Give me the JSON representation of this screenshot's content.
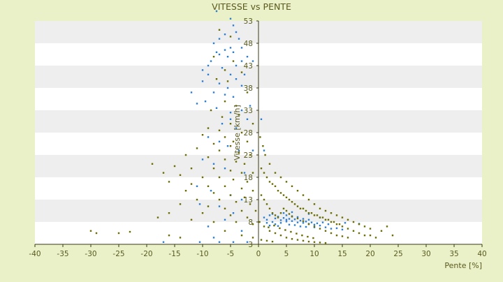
{
  "chart_data": {
    "type": "scatter",
    "title": "VITESSE vs PENTE",
    "xlabel": "Pente [%]",
    "ylabel": "Vitesse [km/h]",
    "xlim": [
      -40,
      40
    ],
    "ylim": [
      3,
      58
    ],
    "x_ticks": [
      -40,
      -35,
      -30,
      -25,
      -20,
      -15,
      -10,
      -5,
      0,
      5,
      10,
      15,
      20,
      25,
      30,
      35,
      40
    ],
    "y_ticks": [
      3,
      8,
      13,
      18,
      23,
      28,
      33,
      38,
      43,
      48,
      53
    ],
    "grid": "horizontal alternating bands",
    "colors": {
      "background": "#eaf0c8",
      "band_light": "#ffffff",
      "band_dark": "#eeeeee",
      "axis_text": "#5a5a1e",
      "series_blue": "#2a7fd4",
      "series_olive": "#6b6b00"
    },
    "series": [
      {
        "color": "#2a7fd4",
        "points": [
          [
            -7.5,
            56.5
          ],
          [
            -5,
            53.5
          ],
          [
            -4.5,
            52
          ],
          [
            -4,
            50.5
          ],
          [
            -6,
            50
          ],
          [
            -7,
            49
          ],
          [
            -8,
            48
          ],
          [
            -3.5,
            49
          ],
          [
            -5,
            47
          ],
          [
            -6,
            46.5
          ],
          [
            -4.5,
            46
          ],
          [
            -5.5,
            45
          ],
          [
            -7,
            45.5
          ],
          [
            -8.5,
            44
          ],
          [
            -3,
            44
          ],
          [
            -4,
            43
          ],
          [
            -6.5,
            42.5
          ],
          [
            -9,
            41
          ],
          [
            -5,
            41
          ],
          [
            -2.5,
            41
          ],
          [
            -4,
            40
          ],
          [
            -10,
            39.5
          ],
          [
            -7,
            39
          ],
          [
            -5.5,
            38
          ],
          [
            -3,
            38.5
          ],
          [
            -8,
            37
          ],
          [
            -6,
            36.5
          ],
          [
            -4.5,
            36
          ],
          [
            -11,
            34.5
          ],
          [
            -9.5,
            35
          ],
          [
            -7.5,
            33.5
          ],
          [
            -5,
            32.5
          ],
          [
            -3,
            33
          ],
          [
            -1.5,
            34
          ],
          [
            0.5,
            31
          ],
          [
            -6.5,
            30
          ],
          [
            -4,
            29
          ],
          [
            -2,
            31
          ],
          [
            -9,
            27
          ],
          [
            -7,
            26
          ],
          [
            -5.5,
            25
          ],
          [
            -3.5,
            24
          ],
          [
            -1,
            24
          ],
          [
            1,
            24
          ],
          [
            -10,
            22
          ],
          [
            -8,
            21
          ],
          [
            -6,
            20
          ],
          [
            -2.5,
            19
          ],
          [
            -11,
            16
          ],
          [
            -8.5,
            15
          ],
          [
            -5,
            14
          ],
          [
            -3,
            13
          ],
          [
            -7,
            11.5
          ],
          [
            -10.5,
            12
          ],
          [
            -4.5,
            10
          ],
          [
            -6,
            8.5
          ],
          [
            -9,
            7
          ],
          [
            -3,
            6
          ],
          [
            -8,
            4.5
          ],
          [
            -10.5,
            3.5
          ],
          [
            -7,
            3.5
          ],
          [
            -4.5,
            3.5
          ],
          [
            -2,
            3.5
          ],
          [
            -17,
            3.5
          ],
          [
            -5,
            31
          ],
          [
            -12,
            37
          ],
          [
            -9,
            43
          ],
          [
            -2,
            45
          ],
          [
            -3,
            47
          ],
          [
            -7.5,
            46
          ],
          [
            -10,
            42
          ],
          [
            -1,
            44
          ],
          [
            1,
            9
          ],
          [
            1.5,
            8.5
          ],
          [
            2,
            9.5
          ],
          [
            2.5,
            8
          ],
          [
            3,
            8.8
          ],
          [
            3.5,
            9.2
          ],
          [
            4,
            8.4
          ],
          [
            4.5,
            8.9
          ],
          [
            5,
            8.1
          ],
          [
            5.5,
            8.7
          ],
          [
            6,
            8.2
          ],
          [
            6.5,
            8.6
          ],
          [
            7,
            7.9
          ],
          [
            7.5,
            8.3
          ],
          [
            8,
            7.8
          ],
          [
            8.5,
            8.1
          ],
          [
            9,
            7.6
          ],
          [
            9.5,
            7.9
          ],
          [
            10,
            7.4
          ],
          [
            10.5,
            7.7
          ],
          [
            11,
            7.2
          ],
          [
            12,
            6.8
          ],
          [
            13,
            6.5
          ],
          [
            14,
            6.6
          ],
          [
            15,
            6.3
          ],
          [
            3,
            7.5
          ],
          [
            4,
            7.8
          ],
          [
            5,
            9.5
          ],
          [
            6,
            9.3
          ],
          [
            7,
            9.1
          ],
          [
            8,
            8.7
          ],
          [
            9,
            8.5
          ],
          [
            2,
            7.2
          ],
          [
            3.5,
            7.1
          ],
          [
            6.5,
            7.3
          ],
          [
            7.5,
            7
          ],
          [
            8.5,
            6.9
          ],
          [
            10,
            6.8
          ],
          [
            11.5,
            7.9
          ],
          [
            12.5,
            7.5
          ],
          [
            1.5,
            7.8
          ],
          [
            2.5,
            9.8
          ],
          [
            4.5,
            10
          ],
          [
            5.5,
            7.4
          ],
          [
            6,
            10.2
          ],
          [
            15.5,
            7.8
          ],
          [
            18,
            7.6
          ],
          [
            11,
            9
          ],
          [
            9,
            9.8
          ],
          [
            5,
            8.5
          ]
        ]
      },
      {
        "color": "#6b6b00",
        "points": [
          [
            -7,
            51
          ],
          [
            -5,
            49.5
          ],
          [
            -8,
            45
          ],
          [
            -4.5,
            44
          ],
          [
            -6,
            42
          ],
          [
            -3,
            41.5
          ],
          [
            -7.5,
            40
          ],
          [
            -5.5,
            39.5
          ],
          [
            -2,
            37
          ],
          [
            -6,
            35
          ],
          [
            -4,
            34
          ],
          [
            -8.5,
            33
          ],
          [
            -3.5,
            32
          ],
          [
            -6.5,
            31.5
          ],
          [
            -1,
            30
          ],
          [
            -5,
            30
          ],
          [
            -9,
            29
          ],
          [
            -7,
            28.5
          ],
          [
            -3,
            28
          ],
          [
            -10,
            27.5
          ],
          [
            -6,
            27
          ],
          [
            -4.5,
            26
          ],
          [
            -2,
            26
          ],
          [
            -8,
            25.5
          ],
          [
            -5,
            25
          ],
          [
            -11,
            24.5
          ],
          [
            -7,
            24
          ],
          [
            -3.5,
            23.5
          ],
          [
            -1.5,
            23
          ],
          [
            -13,
            23
          ],
          [
            -9,
            22.5
          ],
          [
            -6,
            22
          ],
          [
            -4,
            21.5
          ],
          [
            -2.5,
            21
          ],
          [
            -19,
            21
          ],
          [
            -15,
            20.5
          ],
          [
            -12,
            20
          ],
          [
            -8,
            20
          ],
          [
            -5,
            19.5
          ],
          [
            -3,
            19
          ],
          [
            -1,
            19
          ],
          [
            -17,
            19
          ],
          [
            -14,
            18.5
          ],
          [
            -10,
            18
          ],
          [
            -7,
            18
          ],
          [
            -4.5,
            17.5
          ],
          [
            -2,
            17
          ],
          [
            -16,
            17
          ],
          [
            -12,
            16.5
          ],
          [
            -9,
            16
          ],
          [
            -6,
            16
          ],
          [
            -3,
            15.5
          ],
          [
            -1,
            15
          ],
          [
            -13,
            15
          ],
          [
            -8,
            14.5
          ],
          [
            -5,
            14
          ],
          [
            -2.5,
            13.5
          ],
          [
            -11,
            13
          ],
          [
            -7,
            13
          ],
          [
            -4,
            12.5
          ],
          [
            -1.5,
            12
          ],
          [
            -14,
            12
          ],
          [
            -9,
            11.5
          ],
          [
            -6,
            11
          ],
          [
            -3,
            10.5
          ],
          [
            -0.5,
            10.5
          ],
          [
            -16,
            10
          ],
          [
            -10,
            10
          ],
          [
            -5,
            9.5
          ],
          [
            -2,
            9
          ],
          [
            -18,
            9
          ],
          [
            -12,
            8.5
          ],
          [
            -8,
            8
          ],
          [
            -4,
            8
          ],
          [
            -1,
            7.5
          ],
          [
            -30,
            6
          ],
          [
            -29,
            5.5
          ],
          [
            -25,
            5.5
          ],
          [
            -23,
            5.8
          ],
          [
            -16,
            5
          ],
          [
            -14,
            4.5
          ],
          [
            -6,
            6
          ],
          [
            -3,
            5
          ],
          [
            -1,
            4.5
          ],
          [
            0.5,
            20
          ],
          [
            1,
            19
          ],
          [
            1.5,
            18
          ],
          [
            2,
            17
          ],
          [
            2.5,
            16.5
          ],
          [
            3,
            16
          ],
          [
            3.5,
            15
          ],
          [
            4,
            14.5
          ],
          [
            4.5,
            14
          ],
          [
            5,
            13.5
          ],
          [
            5.5,
            13
          ],
          [
            6,
            12.5
          ],
          [
            6.5,
            12
          ],
          [
            7,
            11.5
          ],
          [
            7.5,
            11
          ],
          [
            8,
            11
          ],
          [
            8.5,
            10.5
          ],
          [
            9,
            10
          ],
          [
            9.5,
            10
          ],
          [
            10,
            9.5
          ],
          [
            10.5,
            9.5
          ],
          [
            11,
            9
          ],
          [
            11.5,
            9
          ],
          [
            12,
            8.5
          ],
          [
            12.5,
            8.5
          ],
          [
            13,
            8
          ],
          [
            13.5,
            8
          ],
          [
            14,
            7.5
          ],
          [
            14.5,
            7.5
          ],
          [
            15,
            7
          ],
          [
            16,
            6.5
          ],
          [
            17,
            6
          ],
          [
            18,
            5.5
          ],
          [
            19,
            5
          ],
          [
            20,
            5
          ],
          [
            21,
            4.5
          ],
          [
            22,
            6
          ],
          [
            23,
            7
          ],
          [
            24,
            5
          ],
          [
            0.5,
            14
          ],
          [
            1,
            13
          ],
          [
            1.5,
            12
          ],
          [
            2,
            11
          ],
          [
            2.5,
            10
          ],
          [
            3,
            9.5
          ],
          [
            3.5,
            9
          ],
          [
            4,
            10
          ],
          [
            4.5,
            11
          ],
          [
            5,
            10.5
          ],
          [
            5.5,
            9.8
          ],
          [
            6,
            9.2
          ],
          [
            7,
            8.8
          ],
          [
            8,
            8.2
          ],
          [
            9,
            7.5
          ],
          [
            10,
            7
          ],
          [
            11,
            6.5
          ],
          [
            12,
            6
          ],
          [
            13,
            5.5
          ],
          [
            14,
            5
          ],
          [
            15,
            4.8
          ],
          [
            16,
            4.5
          ],
          [
            2,
            6
          ],
          [
            3,
            5.5
          ],
          [
            4,
            5
          ],
          [
            5,
            4.5
          ],
          [
            6,
            4.2
          ],
          [
            7,
            4
          ],
          [
            8,
            3.8
          ],
          [
            9,
            3.6
          ],
          [
            10,
            3.5
          ],
          [
            11,
            3.4
          ],
          [
            12,
            3.3
          ],
          [
            0.5,
            4
          ],
          [
            1.5,
            3.8
          ],
          [
            2.5,
            3.6
          ],
          [
            0.8,
            25
          ],
          [
            1.2,
            23
          ],
          [
            0.3,
            27
          ],
          [
            2,
            21
          ],
          [
            3,
            19
          ],
          [
            4,
            18
          ],
          [
            5,
            17
          ],
          [
            6,
            16
          ],
          [
            7,
            15
          ],
          [
            8,
            14
          ],
          [
            9,
            13
          ],
          [
            10,
            12
          ],
          [
            11,
            11
          ],
          [
            12,
            10.5
          ],
          [
            13,
            10
          ],
          [
            14,
            9.5
          ],
          [
            15,
            9
          ],
          [
            16,
            8.5
          ],
          [
            17,
            8
          ],
          [
            18,
            7.5
          ],
          [
            19,
            7
          ],
          [
            20,
            6.5
          ],
          [
            0.2,
            8
          ],
          [
            1,
            7
          ],
          [
            1.8,
            6.8
          ],
          [
            2.8,
            7.2
          ],
          [
            3.8,
            6.6
          ],
          [
            4.8,
            6.2
          ],
          [
            5.8,
            5.8
          ],
          [
            6.8,
            5.4
          ],
          [
            7.8,
            5
          ],
          [
            8.8,
            4.7
          ],
          [
            9.8,
            4.4
          ]
        ]
      }
    ]
  }
}
